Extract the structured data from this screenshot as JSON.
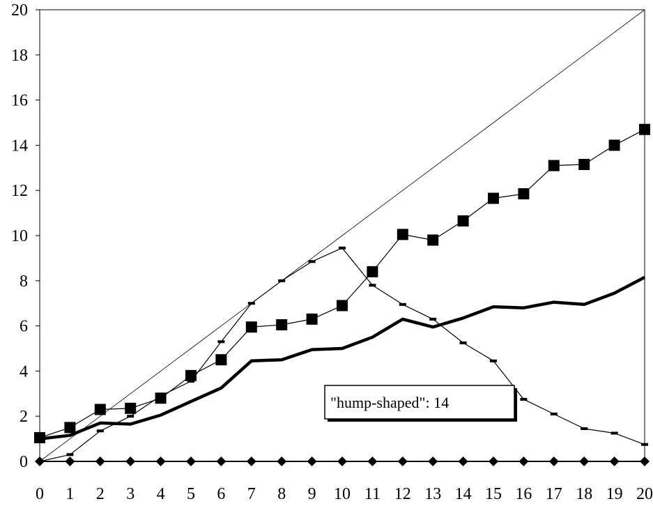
{
  "chart_data": {
    "type": "line",
    "title": "",
    "xlabel": "",
    "ylabel": "",
    "xlim": [
      0,
      20
    ],
    "ylim": [
      0,
      20
    ],
    "x": [
      0,
      1,
      2,
      3,
      4,
      5,
      6,
      7,
      8,
      9,
      10,
      11,
      12,
      13,
      14,
      15,
      16,
      17,
      18,
      19,
      20
    ],
    "x_ticks": [
      "0",
      "1",
      "2",
      "3",
      "4",
      "5",
      "6",
      "7",
      "8",
      "9",
      "10",
      "11",
      "12",
      "13",
      "14",
      "15",
      "16",
      "17",
      "18",
      "19",
      "20"
    ],
    "y_ticks": [
      "0",
      "2",
      "4",
      "6",
      "8",
      "10",
      "12",
      "14",
      "16",
      "18",
      "20"
    ],
    "grid": false,
    "series": [
      {
        "style": "thin-line",
        "color": "#000000",
        "values": [
          0,
          1,
          2,
          3,
          4,
          5,
          6,
          7,
          8,
          9,
          10,
          11,
          12,
          13,
          14,
          15,
          16,
          17,
          18,
          19,
          20
        ]
      },
      {
        "style": "thin-dash-markers",
        "color": "#000000",
        "values": [
          0,
          0.3,
          1.35,
          2.0,
          2.9,
          3.55,
          5.3,
          7.0,
          8.0,
          8.85,
          9.45,
          7.8,
          6.95,
          6.3,
          5.25,
          4.45,
          2.75,
          2.1,
          1.45,
          1.25,
          0.75
        ]
      },
      {
        "style": "square-markers",
        "color": "#000000",
        "values": [
          1.05,
          1.5,
          2.3,
          2.35,
          2.8,
          3.8,
          4.5,
          5.95,
          6.05,
          6.3,
          6.9,
          8.4,
          10.05,
          9.8,
          10.65,
          11.65,
          11.85,
          13.1,
          13.15,
          14.0,
          14.7
        ]
      },
      {
        "style": "thick-line",
        "color": "#000000",
        "values": [
          1.0,
          1.15,
          1.7,
          1.65,
          2.05,
          2.65,
          3.25,
          4.45,
          4.5,
          4.95,
          5.0,
          5.5,
          6.3,
          5.95,
          6.35,
          6.85,
          6.8,
          7.05,
          6.95,
          7.45,
          8.15
        ]
      },
      {
        "style": "diamond-markers",
        "color": "#000000",
        "values": [
          0,
          0,
          0,
          0,
          0,
          0,
          0,
          0,
          0,
          0,
          0,
          0,
          0,
          0,
          0,
          0,
          0,
          0,
          0,
          0,
          0
        ]
      }
    ],
    "annotations": [
      {
        "text": "\"hump-shaped\": 14",
        "x": 15,
        "y": 2.5
      }
    ]
  }
}
